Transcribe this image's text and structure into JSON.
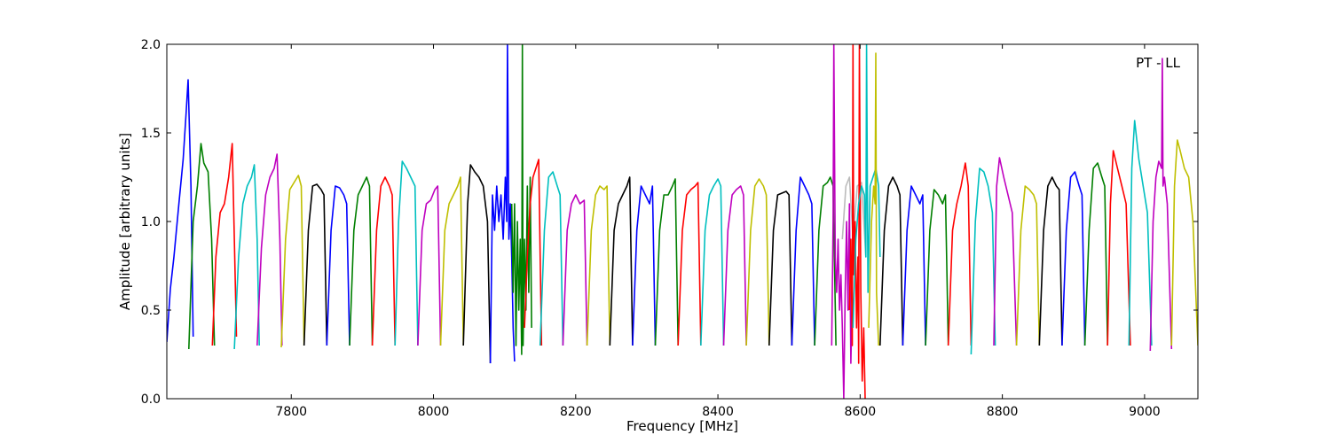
{
  "chart_data": {
    "type": "line",
    "title": "",
    "xlabel": "Frequency [MHz]",
    "ylabel": "Amplitude [arbitrary units]",
    "annotation": "PT - LL",
    "xlim": [
      7625,
      9075
    ],
    "ylim": [
      0.0,
      2.0
    ],
    "xticks": [
      7800,
      8000,
      8200,
      8400,
      8600,
      8800,
      9000
    ],
    "xtick_labels": [
      "7800",
      "8000",
      "8200",
      "8400",
      "8600",
      "8800",
      "9000"
    ],
    "yticks": [
      0.0,
      0.5,
      1.0,
      1.5,
      2.0
    ],
    "ytick_labels": [
      "0.0",
      "0.5",
      "1.0",
      "1.5",
      "2.0"
    ],
    "grid": false,
    "legend": "none",
    "colors": {
      "blue": "#0000ff",
      "green": "#007f00",
      "red": "#ff0000",
      "cyan": "#00bfbf",
      "magenta": "#bf00bf",
      "olive": "#bfbf00",
      "black": "#000000",
      "gray": "#bbbbbb"
    },
    "series": [
      {
        "color": "blue",
        "x": [
          7625,
          7630,
          7635,
          7642,
          7648,
          7652,
          7655,
          7659,
          7662
        ],
        "y": [
          0.32,
          0.62,
          0.8,
          1.1,
          1.35,
          1.6,
          1.8,
          1.2,
          0.35
        ]
      },
      {
        "color": "green",
        "x": [
          7656,
          7662,
          7668,
          7673,
          7677,
          7683,
          7688,
          7692
        ],
        "y": [
          0.28,
          1.0,
          1.2,
          1.44,
          1.33,
          1.28,
          0.9,
          0.3
        ]
      },
      {
        "color": "red",
        "x": [
          7689,
          7694,
          7700,
          7706,
          7712,
          7717,
          7720,
          7723
        ],
        "y": [
          0.3,
          0.8,
          1.05,
          1.1,
          1.25,
          1.44,
          0.9,
          0.35
        ]
      },
      {
        "color": "cyan",
        "x": [
          7720,
          7726,
          7732,
          7738,
          7744,
          7748,
          7752,
          7755
        ],
        "y": [
          0.28,
          0.8,
          1.1,
          1.2,
          1.25,
          1.32,
          0.9,
          0.3
        ]
      },
      {
        "color": "magenta",
        "x": [
          7752,
          7758,
          7764,
          7770,
          7776,
          7780,
          7784,
          7787
        ],
        "y": [
          0.3,
          0.85,
          1.15,
          1.25,
          1.3,
          1.38,
          0.9,
          0.3
        ]
      },
      {
        "color": "olive",
        "x": [
          7786,
          7792,
          7798,
          7804,
          7810,
          7814,
          7818
        ],
        "y": [
          0.29,
          0.9,
          1.18,
          1.22,
          1.26,
          1.2,
          0.3
        ]
      },
      {
        "color": "black",
        "x": [
          7818,
          7824,
          7830,
          7836,
          7842,
          7846,
          7850
        ],
        "y": [
          0.3,
          0.95,
          1.2,
          1.21,
          1.18,
          1.15,
          0.3
        ]
      },
      {
        "color": "blue",
        "x": [
          7850,
          7856,
          7862,
          7868,
          7874,
          7878,
          7882
        ],
        "y": [
          0.3,
          0.95,
          1.2,
          1.19,
          1.15,
          1.1,
          0.3
        ]
      },
      {
        "color": "green",
        "x": [
          7882,
          7888,
          7894,
          7900,
          7906,
          7910,
          7914
        ],
        "y": [
          0.3,
          0.95,
          1.15,
          1.2,
          1.25,
          1.2,
          0.3
        ]
      },
      {
        "color": "red",
        "x": [
          7914,
          7920,
          7926,
          7932,
          7938,
          7942,
          7946
        ],
        "y": [
          0.3,
          0.95,
          1.2,
          1.25,
          1.2,
          1.15,
          0.3
        ]
      },
      {
        "color": "cyan",
        "x": [
          7946,
          7951,
          7956,
          7962,
          7968,
          7974,
          7978
        ],
        "y": [
          0.3,
          1.0,
          1.34,
          1.3,
          1.25,
          1.2,
          0.3
        ]
      },
      {
        "color": "magenta",
        "x": [
          7978,
          7984,
          7990,
          7996,
          8002,
          8006,
          8010
        ],
        "y": [
          0.3,
          0.95,
          1.1,
          1.12,
          1.18,
          1.2,
          0.3
        ]
      },
      {
        "color": "olive",
        "x": [
          8010,
          8016,
          8022,
          8028,
          8034,
          8038,
          8042
        ],
        "y": [
          0.3,
          0.95,
          1.1,
          1.15,
          1.2,
          1.25,
          0.3
        ]
      },
      {
        "color": "black",
        "x": [
          8042,
          8048,
          8052,
          8058,
          8064,
          8070,
          8076,
          8080
        ],
        "y": [
          0.3,
          1.1,
          1.32,
          1.28,
          1.25,
          1.2,
          1.0,
          0.2
        ]
      },
      {
        "color": "blue",
        "x": [
          8080,
          8083,
          8086,
          8089,
          8092,
          8095,
          8098,
          8101,
          8103,
          8104,
          8106,
          8108,
          8110,
          8112,
          8114
        ],
        "y": [
          0.2,
          1.15,
          0.95,
          1.2,
          1.0,
          1.15,
          0.9,
          1.25,
          1.0,
          2.0,
          0.9,
          1.1,
          0.8,
          0.4,
          0.21
        ]
      },
      {
        "color": "green",
        "x": [
          8110,
          8112,
          8114,
          8116,
          8118,
          8120,
          8122,
          8124,
          8125,
          8126,
          8128,
          8130,
          8132,
          8134,
          8136,
          8138
        ],
        "y": [
          1.1,
          0.6,
          1.1,
          0.3,
          1.0,
          0.5,
          0.9,
          0.25,
          2.0,
          0.3,
          0.9,
          0.5,
          1.2,
          0.6,
          1.25,
          0.4
        ]
      },
      {
        "color": "red",
        "x": [
          8128,
          8132,
          8136,
          8140,
          8144,
          8148,
          8152
        ],
        "y": [
          0.4,
          0.8,
          1.1,
          1.25,
          1.3,
          1.35,
          0.3
        ]
      },
      {
        "color": "cyan",
        "x": [
          8150,
          8156,
          8162,
          8168,
          8174,
          8178,
          8182
        ],
        "y": [
          0.3,
          0.95,
          1.25,
          1.28,
          1.2,
          1.15,
          0.3
        ]
      },
      {
        "color": "magenta",
        "x": [
          8182,
          8188,
          8194,
          8200,
          8206,
          8212,
          8216
        ],
        "y": [
          0.3,
          0.95,
          1.1,
          1.15,
          1.1,
          1.12,
          0.3
        ]
      },
      {
        "color": "olive",
        "x": [
          8216,
          8222,
          8228,
          8234,
          8240,
          8244,
          8248
        ],
        "y": [
          0.3,
          0.95,
          1.15,
          1.2,
          1.18,
          1.2,
          0.3
        ]
      },
      {
        "color": "black",
        "x": [
          8248,
          8254,
          8260,
          8266,
          8272,
          8276,
          8280
        ],
        "y": [
          0.3,
          0.95,
          1.1,
          1.15,
          1.2,
          1.25,
          0.3
        ]
      },
      {
        "color": "blue",
        "x": [
          8280,
          8286,
          8292,
          8298,
          8304,
          8308,
          8312
        ],
        "y": [
          0.3,
          0.95,
          1.2,
          1.15,
          1.1,
          1.2,
          0.3
        ]
      },
      {
        "color": "green",
        "x": [
          8312,
          8318,
          8324,
          8330,
          8336,
          8340,
          8344
        ],
        "y": [
          0.3,
          0.95,
          1.15,
          1.15,
          1.2,
          1.24,
          0.3
        ]
      },
      {
        "color": "red",
        "x": [
          8344,
          8350,
          8356,
          8362,
          8368,
          8372,
          8376
        ],
        "y": [
          0.3,
          0.95,
          1.15,
          1.18,
          1.2,
          1.22,
          0.3
        ]
      },
      {
        "color": "cyan",
        "x": [
          8376,
          8382,
          8388,
          8394,
          8400,
          8404,
          8408
        ],
        "y": [
          0.3,
          0.95,
          1.15,
          1.2,
          1.24,
          1.2,
          0.3
        ]
      },
      {
        "color": "magenta",
        "x": [
          8408,
          8414,
          8420,
          8426,
          8432,
          8436,
          8440
        ],
        "y": [
          0.3,
          0.95,
          1.15,
          1.18,
          1.2,
          1.15,
          0.3
        ]
      },
      {
        "color": "olive",
        "x": [
          8440,
          8446,
          8452,
          8458,
          8464,
          8468,
          8472
        ],
        "y": [
          0.3,
          0.95,
          1.2,
          1.24,
          1.2,
          1.15,
          0.3
        ]
      },
      {
        "color": "black",
        "x": [
          8472,
          8478,
          8484,
          8490,
          8496,
          8500,
          8504
        ],
        "y": [
          0.3,
          0.95,
          1.15,
          1.16,
          1.17,
          1.15,
          0.3
        ]
      },
      {
        "color": "blue",
        "x": [
          8504,
          8510,
          8516,
          8522,
          8528,
          8532,
          8536
        ],
        "y": [
          0.3,
          0.95,
          1.25,
          1.2,
          1.15,
          1.1,
          0.3
        ]
      },
      {
        "color": "green",
        "x": [
          8536,
          8542,
          8548,
          8554,
          8558,
          8562,
          8566
        ],
        "y": [
          0.3,
          0.95,
          1.2,
          1.22,
          1.25,
          1.2,
          0.3
        ]
      },
      {
        "color": "gray",
        "x": [
          8575,
          8580,
          8585,
          8590,
          8596,
          8602,
          8608
        ],
        "y": [
          0.9,
          1.2,
          1.25,
          0.9,
          1.2,
          1.22,
          0.8
        ]
      },
      {
        "color": "magenta",
        "x": [
          8560,
          8562,
          8563,
          8565,
          8567,
          8569,
          8571,
          8573,
          8575,
          8577,
          8579,
          8581,
          8583,
          8585,
          8587,
          8589
        ],
        "y": [
          0.3,
          1.0,
          2.0,
          0.8,
          0.6,
          0.9,
          0.5,
          0.7,
          0.4,
          0.0,
          0.6,
          1.0,
          0.5,
          1.1,
          0.2,
          0.6
        ]
      },
      {
        "color": "red",
        "x": [
          8585,
          8587,
          8589,
          8590,
          8591,
          8593,
          8595,
          8597,
          8598,
          8599,
          8601,
          8603,
          8605,
          8607
        ],
        "y": [
          0.5,
          0.9,
          0.3,
          2.0,
          0.7,
          1.0,
          0.4,
          0.8,
          0.2,
          2.0,
          0.6,
          0.1,
          0.4,
          0.0
        ]
      },
      {
        "color": "cyan",
        "x": [
          8590,
          8594,
          8598,
          8602,
          8606,
          8608,
          8609,
          8611,
          8614,
          8618,
          8622,
          8626,
          8628
        ],
        "y": [
          0.4,
          0.9,
          1.1,
          1.2,
          1.15,
          0.8,
          2.0,
          0.6,
          1.2,
          1.25,
          1.3,
          1.2,
          0.8
        ]
      },
      {
        "color": "olive",
        "x": [
          8612,
          8616,
          8619,
          8621,
          8622,
          8623,
          8626
        ],
        "y": [
          0.4,
          1.0,
          1.2,
          1.1,
          1.95,
          0.6,
          0.3
        ]
      },
      {
        "color": "black",
        "x": [
          8628,
          8634,
          8640,
          8646,
          8652,
          8656,
          8660
        ],
        "y": [
          0.3,
          0.95,
          1.2,
          1.25,
          1.2,
          1.15,
          0.3
        ]
      },
      {
        "color": "blue",
        "x": [
          8660,
          8666,
          8672,
          8678,
          8684,
          8688,
          8692
        ],
        "y": [
          0.3,
          0.95,
          1.2,
          1.15,
          1.1,
          1.15,
          0.3
        ]
      },
      {
        "color": "green",
        "x": [
          8692,
          8698,
          8704,
          8710,
          8716,
          8720,
          8724
        ],
        "y": [
          0.3,
          0.95,
          1.18,
          1.15,
          1.1,
          1.15,
          0.3
        ]
      },
      {
        "color": "red",
        "x": [
          8724,
          8730,
          8736,
          8742,
          8748,
          8752,
          8756
        ],
        "y": [
          0.3,
          0.95,
          1.1,
          1.2,
          1.33,
          1.2,
          0.3
        ]
      },
      {
        "color": "cyan",
        "x": [
          8756,
          8762,
          8768,
          8774,
          8780,
          8786,
          8790
        ],
        "y": [
          0.25,
          1.0,
          1.3,
          1.28,
          1.2,
          1.05,
          0.3
        ]
      },
      {
        "color": "magenta",
        "x": [
          8788,
          8792,
          8796,
          8802,
          8808,
          8814,
          8820
        ],
        "y": [
          0.3,
          1.2,
          1.36,
          1.25,
          1.15,
          1.05,
          0.3
        ]
      },
      {
        "color": "olive",
        "x": [
          8820,
          8826,
          8832,
          8838,
          8844,
          8848,
          8852
        ],
        "y": [
          0.3,
          0.95,
          1.2,
          1.18,
          1.15,
          1.1,
          0.3
        ]
      },
      {
        "color": "black",
        "x": [
          8852,
          8858,
          8864,
          8870,
          8876,
          8880,
          8884
        ],
        "y": [
          0.3,
          0.95,
          1.2,
          1.25,
          1.2,
          1.18,
          0.3
        ]
      },
      {
        "color": "blue",
        "x": [
          8884,
          8890,
          8896,
          8902,
          8908,
          8912,
          8916
        ],
        "y": [
          0.3,
          0.95,
          1.25,
          1.28,
          1.2,
          1.15,
          0.3
        ]
      },
      {
        "color": "green",
        "x": [
          8916,
          8922,
          8928,
          8934,
          8940,
          8944,
          8948
        ],
        "y": [
          0.3,
          0.95,
          1.3,
          1.33,
          1.25,
          1.2,
          0.3
        ]
      },
      {
        "color": "red",
        "x": [
          8948,
          8952,
          8956,
          8962,
          8968,
          8974,
          8980
        ],
        "y": [
          0.3,
          1.1,
          1.4,
          1.3,
          1.2,
          1.1,
          0.3
        ]
      },
      {
        "color": "cyan",
        "x": [
          8978,
          8982,
          8986,
          8992,
          8998,
          9004,
          9010
        ],
        "y": [
          0.3,
          1.3,
          1.57,
          1.35,
          1.2,
          1.05,
          0.3
        ]
      },
      {
        "color": "magenta",
        "x": [
          9008,
          9012,
          9016,
          9020,
          9024,
          9025,
          9026,
          9028,
          9032,
          9038
        ],
        "y": [
          0.27,
          1.0,
          1.25,
          1.34,
          1.3,
          1.92,
          1.2,
          1.25,
          1.1,
          0.28
        ]
      },
      {
        "color": "olive",
        "x": [
          9038,
          9042,
          9046,
          9050,
          9056,
          9062,
          9068,
          9075
        ],
        "y": [
          0.3,
          1.2,
          1.46,
          1.4,
          1.3,
          1.25,
          1.0,
          0.3
        ]
      }
    ]
  }
}
